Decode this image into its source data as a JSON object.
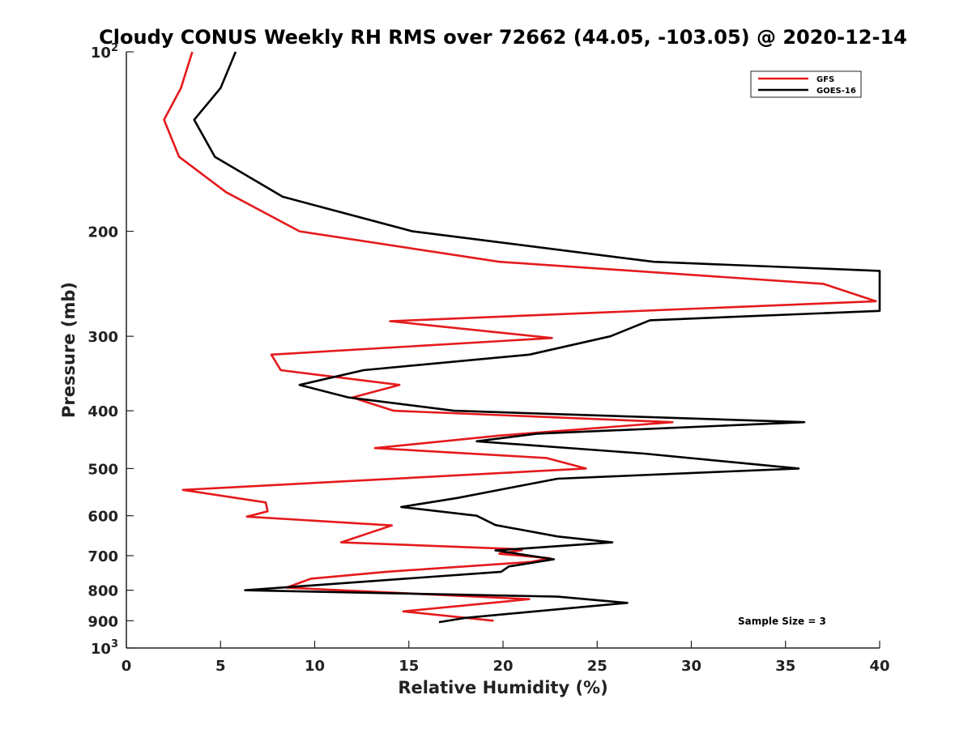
{
  "chart_data": {
    "type": "line",
    "title": "Cloudy CONUS Weekly RH RMS over 72662 (44.05, -103.05) @ 2020-12-14",
    "xlabel": "Relative Humidity (%)",
    "ylabel": "Pressure (mb)",
    "xlim": [
      0,
      40
    ],
    "ylim": [
      100,
      1000
    ],
    "y_scale": "log",
    "y_reversed": true,
    "x_ticks": [
      "0",
      "5",
      "10",
      "15",
      "20",
      "25",
      "30",
      "35",
      "40"
    ],
    "x_tick_values": [
      0,
      5,
      10,
      15,
      20,
      25,
      30,
      35,
      40
    ],
    "y_ticks": [
      {
        "value": 200,
        "base": "200",
        "exp": ""
      },
      {
        "value": 300,
        "base": "300",
        "exp": ""
      },
      {
        "value": 400,
        "base": "400",
        "exp": ""
      },
      {
        "value": 500,
        "base": "500",
        "exp": ""
      },
      {
        "value": 600,
        "base": "600",
        "exp": ""
      },
      {
        "value": 700,
        "base": "700",
        "exp": ""
      },
      {
        "value": 800,
        "base": "800",
        "exp": ""
      },
      {
        "value": 900,
        "base": "900",
        "exp": ""
      }
    ],
    "y_ticks_exp": [
      {
        "value": 100,
        "base": "10",
        "exp": "2"
      },
      {
        "value": 1000,
        "base": "10",
        "exp": "3"
      }
    ],
    "legend_position": "top-right",
    "grid": false,
    "annotation": "Sample Size = 3",
    "series": [
      {
        "name": "GFS",
        "color": "#e41a1c",
        "points": [
          [
            3.5,
            100
          ],
          [
            2.9,
            115
          ],
          [
            2.0,
            130
          ],
          [
            2.8,
            150
          ],
          [
            5.3,
            172
          ],
          [
            9.2,
            200
          ],
          [
            19.8,
            225
          ],
          [
            37.0,
            245
          ],
          [
            39.8,
            262
          ],
          [
            14.0,
            283
          ],
          [
            22.6,
            302
          ],
          [
            7.7,
            322
          ],
          [
            8.2,
            342
          ],
          [
            14.5,
            362
          ],
          [
            12.0,
            380
          ],
          [
            14.2,
            400
          ],
          [
            29.0,
            418
          ],
          [
            19.9,
            440
          ],
          [
            13.2,
            462
          ],
          [
            22.3,
            480
          ],
          [
            24.4,
            500
          ],
          [
            3.0,
            543
          ],
          [
            7.4,
            570
          ],
          [
            7.5,
            590
          ],
          [
            6.4,
            602
          ],
          [
            14.1,
            623
          ],
          [
            11.4,
            665
          ],
          [
            20.5,
            682
          ],
          [
            21.0,
            685
          ],
          [
            19.8,
            695
          ],
          [
            22.5,
            707
          ],
          [
            21.5,
            717
          ],
          [
            13.8,
            745
          ],
          [
            9.8,
            765
          ],
          [
            8.5,
            792
          ],
          [
            21.4,
            828
          ],
          [
            14.7,
            868
          ],
          [
            19.5,
            900
          ]
        ]
      },
      {
        "name": "GOES-16",
        "color": "#000000",
        "points": [
          [
            5.8,
            100
          ],
          [
            5.0,
            115
          ],
          [
            3.6,
            130
          ],
          [
            4.7,
            150
          ],
          [
            8.3,
            175
          ],
          [
            15.2,
            200
          ],
          [
            28.0,
            225
          ],
          [
            40.0,
            233
          ],
          [
            40.0,
            272
          ],
          [
            27.8,
            282
          ],
          [
            25.7,
            300
          ],
          [
            21.4,
            322
          ],
          [
            12.6,
            342
          ],
          [
            9.2,
            362
          ],
          [
            11.8,
            380
          ],
          [
            17.4,
            400
          ],
          [
            36.0,
            418
          ],
          [
            21.8,
            437
          ],
          [
            18.6,
            450
          ],
          [
            27.5,
            472
          ],
          [
            35.7,
            500
          ],
          [
            22.9,
            520
          ],
          [
            20.2,
            540
          ],
          [
            17.6,
            560
          ],
          [
            14.6,
            580
          ],
          [
            18.6,
            600
          ],
          [
            19.6,
            622
          ],
          [
            22.9,
            650
          ],
          [
            25.8,
            665
          ],
          [
            21.4,
            680
          ],
          [
            19.6,
            686
          ],
          [
            22.7,
            710
          ],
          [
            20.3,
            730
          ],
          [
            19.9,
            745
          ],
          [
            6.3,
            800
          ],
          [
            22.9,
            820
          ],
          [
            26.6,
            840
          ],
          [
            18.0,
            890
          ],
          [
            16.6,
            905
          ]
        ]
      }
    ]
  }
}
